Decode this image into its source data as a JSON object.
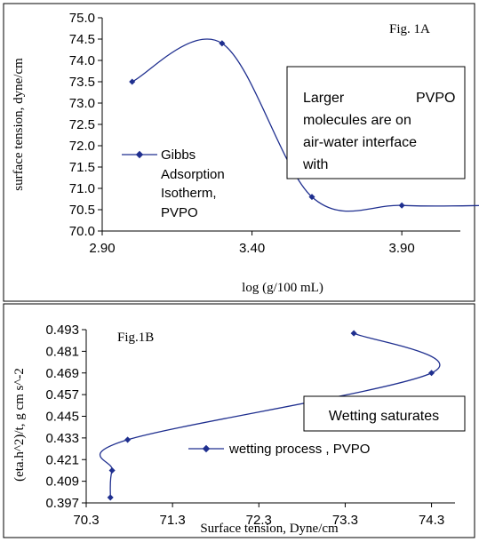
{
  "chart_data": [
    {
      "type": "line",
      "figure_label": "Fig. 1A",
      "xlabel": "log (g/100 mL)",
      "ylabel": "surface tension, dyne/cm",
      "xlim": [
        2.9,
        4.3
      ],
      "ylim": [
        70.0,
        75.0
      ],
      "x_ticks": [
        "2.90",
        "3.40",
        "3.90"
      ],
      "y_ticks": [
        "70.0",
        "70.5",
        "71.0",
        "71.5",
        "72.0",
        "72.5",
        "73.0",
        "73.5",
        "74.0",
        "74.5",
        "75.0"
      ],
      "series": [
        {
          "name": "Gibbs Adsorption Isotherm, PVPO",
          "points": [
            [
              3.0,
              73.5
            ],
            [
              3.3,
              74.4
            ],
            [
              3.6,
              70.8
            ],
            [
              3.9,
              70.6
            ],
            [
              4.2,
              70.6
            ]
          ]
        }
      ],
      "annotation": "Larger PVPO molecules are on air-water interface with",
      "grid": false,
      "legend_position": "center-left"
    },
    {
      "type": "line",
      "figure_label": "Fig.1B",
      "xlabel": "Surface tension, Dyne/cm",
      "ylabel": "(eta.h^2)/t, g cm s^-2",
      "xlim": [
        70.3,
        74.5
      ],
      "ylim": [
        0.397,
        0.493
      ],
      "x_ticks": [
        "70.3",
        "71.3",
        "72.3",
        "73.3",
        "74.3"
      ],
      "y_ticks": [
        "0.397",
        "0.409",
        "0.421",
        "0.433",
        "0.445",
        "0.457",
        "0.469",
        "0.481",
        "0.493"
      ],
      "series": [
        {
          "name": "wetting process , PVPO",
          "points": [
            [
              70.58,
              0.4
            ],
            [
              70.6,
              0.415
            ],
            [
              70.78,
              0.432
            ],
            [
              74.3,
              0.469
            ],
            [
              73.4,
              0.491
            ]
          ]
        }
      ],
      "annotation": "Wetting saturates",
      "grid": false,
      "legend_position": "bottom-center"
    }
  ]
}
